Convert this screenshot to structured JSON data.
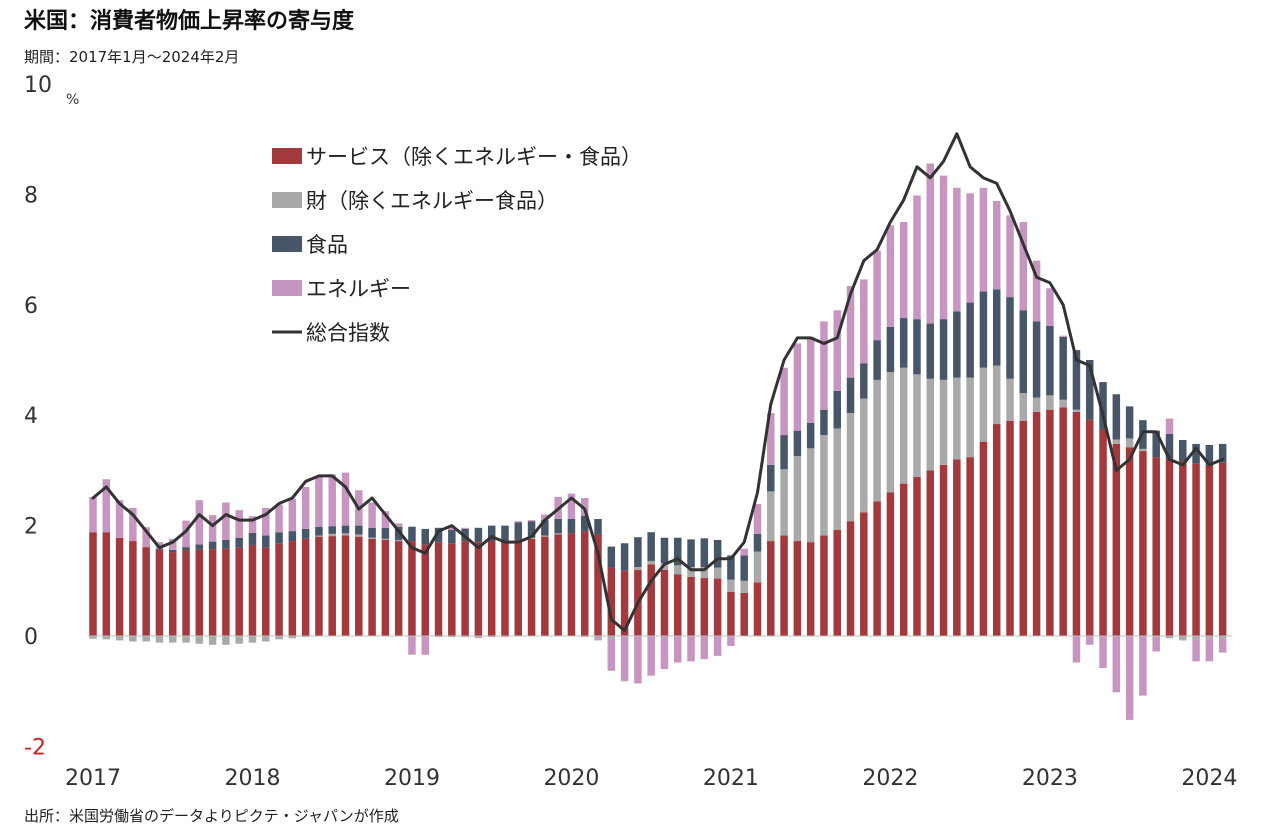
{
  "title": "米国：消費者物価上昇率の寄与度",
  "subtitle": "期間：2017年1月～2024年2月",
  "unit": "%",
  "source": "出所：米国労働省のデータよりピクテ・ジャパンが作成",
  "colors": {
    "services": "#a3393d",
    "goods": "#a9a9a9",
    "food": "#475669",
    "energy": "#c796c0",
    "total": "#333333",
    "negative_tick": "#d21f1f"
  },
  "chart_data": {
    "type": "bar",
    "stacked": true,
    "x_label_ticks": [
      "2017",
      "2018",
      "2019",
      "2020",
      "2021",
      "2022",
      "2023",
      "2024"
    ],
    "y_ticks": [
      "10",
      "8",
      "6",
      "4",
      "2",
      "0",
      "-2"
    ],
    "ylim": [
      -2,
      10
    ],
    "start": "2017-01",
    "end": "2024-02",
    "legend_position": "upper-left inside plot",
    "series": [
      {
        "name": "サービス（除くエネルギー・食品）",
        "type": "bar",
        "values": [
          1.88,
          1.88,
          1.78,
          1.72,
          1.61,
          1.56,
          1.52,
          1.55,
          1.56,
          1.57,
          1.58,
          1.6,
          1.65,
          1.6,
          1.68,
          1.72,
          1.76,
          1.8,
          1.81,
          1.82,
          1.8,
          1.76,
          1.74,
          1.72,
          1.72,
          1.66,
          1.7,
          1.68,
          1.72,
          1.7,
          1.72,
          1.7,
          1.74,
          1.76,
          1.8,
          1.84,
          1.86,
          1.9,
          1.84,
          1.24,
          1.18,
          1.2,
          1.3,
          1.2,
          1.12,
          1.07,
          1.05,
          1.04,
          0.8,
          0.78,
          0.97,
          1.72,
          1.82,
          1.72,
          1.7,
          1.82,
          1.92,
          2.08,
          2.24,
          2.44,
          2.6,
          2.76,
          2.88,
          3.0,
          3.1,
          3.2,
          3.24,
          3.52,
          3.84,
          3.9,
          3.9,
          4.06,
          4.1,
          4.14,
          4.06,
          3.92,
          3.74,
          3.48,
          3.42,
          3.35,
          3.24,
          3.22,
          3.17,
          3.12,
          3.1,
          3.14
        ]
      },
      {
        "name": "財（除くエネルギー食品）",
        "type": "bar",
        "values": [
          -0.05,
          -0.06,
          -0.08,
          -0.1,
          -0.1,
          -0.12,
          -0.12,
          -0.12,
          -0.14,
          -0.16,
          -0.16,
          -0.14,
          -0.12,
          -0.1,
          -0.06,
          -0.04,
          -0.02,
          0.02,
          0.04,
          0.04,
          0.04,
          0.02,
          0.02,
          0.02,
          0.0,
          0.0,
          -0.02,
          -0.02,
          -0.02,
          -0.02,
          0.0,
          0.0,
          0.0,
          0.02,
          0.02,
          0.02,
          0.0,
          -0.02,
          -0.04,
          -0.05,
          0.0,
          0.05,
          0.06,
          0.12,
          0.16,
          0.18,
          0.2,
          0.2,
          0.22,
          0.22,
          0.56,
          0.9,
          1.2,
          1.54,
          1.7,
          1.82,
          1.84,
          1.96,
          2.06,
          2.2,
          2.18,
          2.1,
          1.86,
          1.66,
          1.54,
          1.48,
          1.44,
          1.34,
          1.06,
          0.76,
          0.5,
          0.26,
          0.26,
          0.14,
          0.04,
          0.0,
          0.0,
          0.08,
          0.16,
          0.04,
          0.0,
          -0.04,
          -0.06,
          -0.06,
          -0.04,
          -0.04
        ]
      },
      {
        "name": "食品",
        "type": "bar",
        "values": [
          0.0,
          0.0,
          0.0,
          0.0,
          0.0,
          0.02,
          0.04,
          0.06,
          0.1,
          0.14,
          0.16,
          0.18,
          0.22,
          0.22,
          0.2,
          0.18,
          0.18,
          0.16,
          0.14,
          0.14,
          0.16,
          0.18,
          0.2,
          0.24,
          0.26,
          0.28,
          0.26,
          0.24,
          0.22,
          0.26,
          0.28,
          0.3,
          0.32,
          0.3,
          0.28,
          0.26,
          0.26,
          0.28,
          0.28,
          0.38,
          0.5,
          0.54,
          0.52,
          0.46,
          0.5,
          0.5,
          0.52,
          0.5,
          0.44,
          0.46,
          0.32,
          0.48,
          0.62,
          0.46,
          0.46,
          0.46,
          0.68,
          0.64,
          0.64,
          0.72,
          0.82,
          0.9,
          1.0,
          1.0,
          1.1,
          1.2,
          1.36,
          1.38,
          1.38,
          1.48,
          1.5,
          1.38,
          1.26,
          1.14,
          1.08,
          1.08,
          0.86,
          0.82,
          0.58,
          0.52,
          0.48,
          0.44,
          0.38,
          0.36,
          0.36,
          0.34
        ]
      },
      {
        "name": "エネルギー",
        "type": "bar",
        "values": [
          0.64,
          0.96,
          0.68,
          0.6,
          0.36,
          0.12,
          0.2,
          0.48,
          0.8,
          0.48,
          0.68,
          0.5,
          0.3,
          0.5,
          0.5,
          0.58,
          0.76,
          0.9,
          0.94,
          0.96,
          0.64,
          0.46,
          0.3,
          0.06,
          -0.34,
          -0.34,
          0.0,
          0.06,
          0.02,
          -0.02,
          -0.02,
          -0.02,
          0.02,
          0.02,
          0.1,
          0.4,
          0.46,
          0.32,
          -0.04,
          -0.58,
          -0.82,
          -0.86,
          -0.72,
          -0.6,
          -0.48,
          -0.46,
          -0.42,
          -0.36,
          -0.18,
          0.12,
          0.54,
          0.94,
          1.22,
          1.58,
          1.56,
          1.6,
          1.46,
          1.66,
          1.52,
          1.62,
          1.84,
          1.74,
          2.24,
          2.9,
          2.6,
          2.24,
          1.98,
          1.88,
          1.6,
          1.48,
          1.6,
          1.1,
          0.68,
          0.02,
          -0.48,
          -0.16,
          -0.58,
          -1.02,
          -1.52,
          -1.08,
          -0.28,
          0.28,
          -0.02,
          -0.4,
          -0.42,
          -0.26
        ]
      },
      {
        "name": "総合指数",
        "type": "line",
        "values": [
          2.5,
          2.7,
          2.4,
          2.2,
          1.9,
          1.6,
          1.7,
          1.9,
          2.2,
          2.0,
          2.2,
          2.1,
          2.1,
          2.2,
          2.4,
          2.5,
          2.8,
          2.9,
          2.9,
          2.7,
          2.3,
          2.5,
          2.2,
          1.9,
          1.6,
          1.5,
          1.9,
          2.0,
          1.8,
          1.6,
          1.8,
          1.7,
          1.7,
          1.8,
          2.1,
          2.3,
          2.5,
          2.3,
          1.5,
          0.3,
          0.1,
          0.6,
          1.0,
          1.3,
          1.4,
          1.2,
          1.2,
          1.4,
          1.4,
          1.7,
          2.6,
          4.2,
          5.0,
          5.4,
          5.4,
          5.3,
          5.4,
          6.2,
          6.8,
          7.0,
          7.5,
          7.9,
          8.5,
          8.3,
          8.6,
          9.1,
          8.5,
          8.3,
          8.2,
          7.7,
          7.1,
          6.5,
          6.4,
          6.0,
          5.0,
          4.9,
          4.0,
          3.0,
          3.2,
          3.7,
          3.7,
          3.2,
          3.1,
          3.4,
          3.1,
          3.2
        ]
      }
    ]
  }
}
